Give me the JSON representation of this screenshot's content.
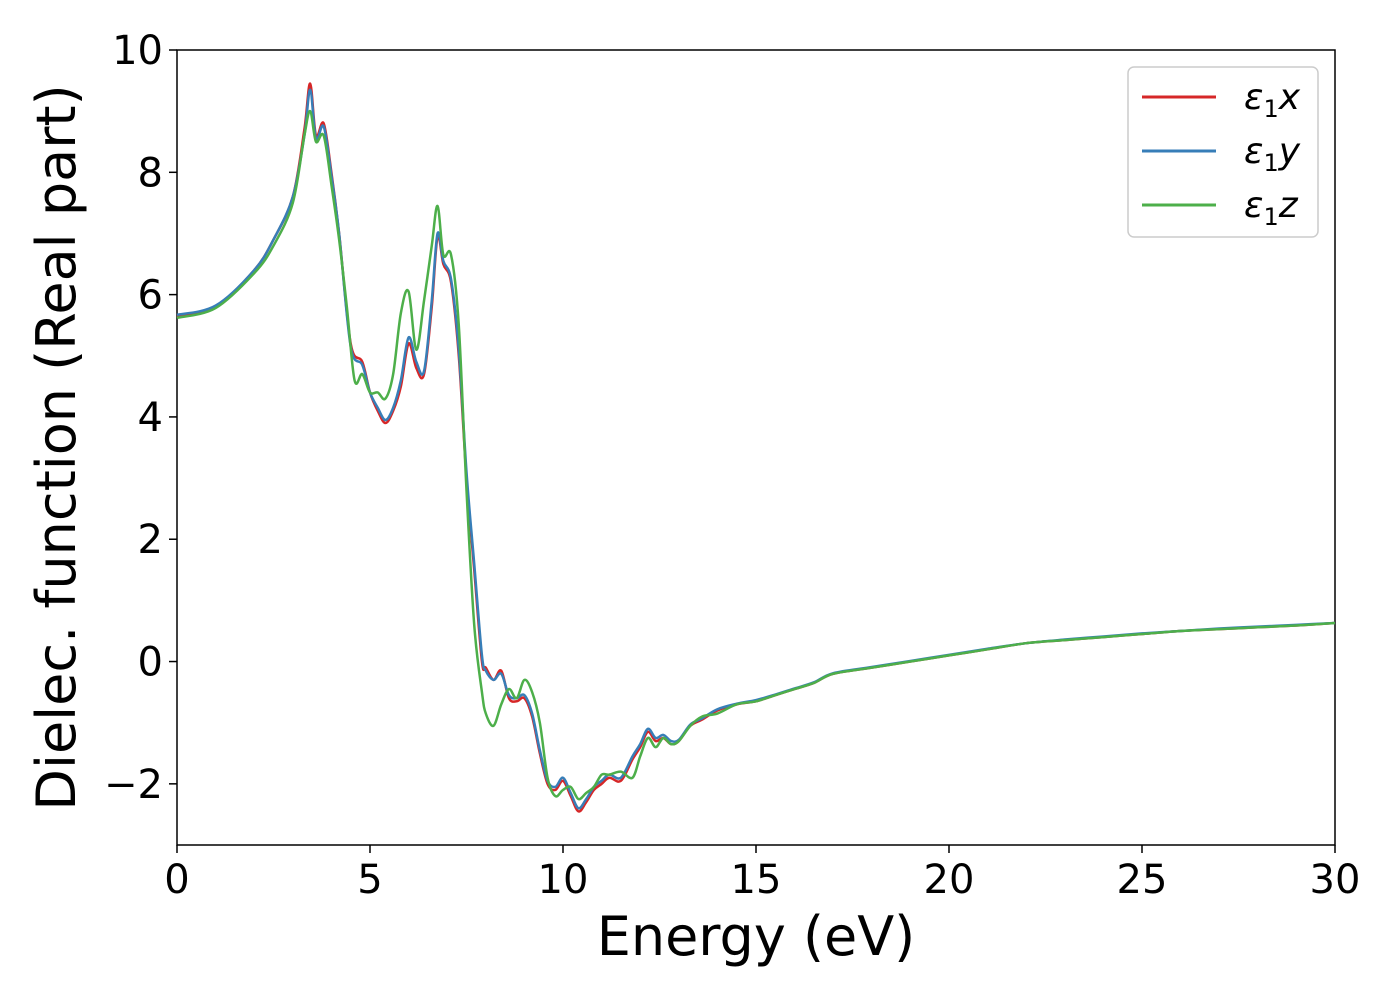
{
  "chart_data": {
    "type": "line",
    "title": "",
    "xlabel": "Energy (eV)",
    "ylabel": "Dielec. function (Real part)",
    "xlim": [
      0,
      30
    ],
    "ylim": [
      -3,
      10
    ],
    "xticks": [
      0,
      5,
      10,
      15,
      20,
      25,
      30
    ],
    "xtick_labels": [
      "0",
      "5",
      "10",
      "15",
      "20",
      "25",
      "30"
    ],
    "yticks": [
      -2,
      0,
      2,
      4,
      6,
      8,
      10
    ],
    "ytick_labels": [
      "−2",
      "0",
      "2",
      "4",
      "6",
      "8",
      "10"
    ],
    "grid": false,
    "legend_position": "top-right",
    "series": [
      {
        "name": "ε₁x",
        "legend": {
          "base": "ε",
          "sub": "1",
          "suffix": "x"
        },
        "color": "#d62728",
        "x": [
          0,
          1,
          2,
          2.5,
          3,
          3.3,
          3.45,
          3.6,
          3.8,
          4.0,
          4.2,
          4.5,
          4.8,
          5.0,
          5.2,
          5.4,
          5.6,
          5.8,
          6.0,
          6.2,
          6.4,
          6.6,
          6.75,
          6.9,
          7.1,
          7.3,
          7.5,
          7.7,
          7.9,
          8.0,
          8.2,
          8.4,
          8.6,
          8.8,
          9.0,
          9.2,
          9.4,
          9.6,
          9.8,
          10.0,
          10.2,
          10.4,
          10.6,
          10.8,
          11.0,
          11.2,
          11.5,
          11.8,
          12.0,
          12.2,
          12.4,
          12.6,
          12.8,
          13.0,
          13.3,
          13.6,
          14.0,
          14.5,
          15.0,
          15.5,
          16.0,
          16.5,
          17.0,
          18.0,
          19.0,
          20.0,
          21.0,
          22.0,
          23.0,
          24.0,
          25.0,
          26.0,
          27.0,
          28.0,
          29.0,
          30.0
        ],
        "y": [
          5.65,
          5.8,
          6.4,
          6.9,
          7.6,
          8.7,
          9.45,
          8.6,
          8.8,
          8.0,
          7.0,
          5.2,
          4.9,
          4.4,
          4.1,
          3.9,
          4.1,
          4.5,
          5.2,
          4.8,
          4.7,
          5.8,
          6.95,
          6.5,
          6.2,
          5.0,
          3.0,
          1.5,
          0.0,
          -0.1,
          -0.3,
          -0.15,
          -0.6,
          -0.65,
          -0.6,
          -0.9,
          -1.5,
          -2.0,
          -2.1,
          -1.95,
          -2.2,
          -2.45,
          -2.3,
          -2.1,
          -2.0,
          -1.9,
          -1.95,
          -1.6,
          -1.4,
          -1.15,
          -1.3,
          -1.25,
          -1.35,
          -1.3,
          -1.05,
          -0.95,
          -0.8,
          -0.7,
          -0.65,
          -0.55,
          -0.45,
          -0.35,
          -0.2,
          -0.1,
          0.0,
          0.1,
          0.2,
          0.3,
          0.35,
          0.4,
          0.45,
          0.5,
          0.53,
          0.56,
          0.59,
          0.63
        ]
      },
      {
        "name": "ε₁y",
        "legend": {
          "base": "ε",
          "sub": "1",
          "suffix": "y"
        },
        "color": "#377eb8",
        "x": [
          0,
          1,
          2,
          2.5,
          3,
          3.3,
          3.45,
          3.6,
          3.8,
          4.0,
          4.2,
          4.5,
          4.8,
          5.0,
          5.2,
          5.4,
          5.6,
          5.8,
          6.0,
          6.2,
          6.4,
          6.6,
          6.75,
          6.9,
          7.1,
          7.3,
          7.5,
          7.7,
          7.9,
          8.0,
          8.2,
          8.4,
          8.6,
          8.8,
          9.0,
          9.2,
          9.4,
          9.6,
          9.8,
          10.0,
          10.2,
          10.4,
          10.6,
          10.8,
          11.0,
          11.2,
          11.5,
          11.8,
          12.0,
          12.2,
          12.4,
          12.6,
          12.8,
          13.0,
          13.3,
          13.6,
          14.0,
          14.5,
          15.0,
          15.5,
          16.0,
          16.5,
          17.0,
          18.0,
          19.0,
          20.0,
          21.0,
          22.0,
          23.0,
          24.0,
          25.0,
          26.0,
          27.0,
          28.0,
          29.0,
          30.0
        ],
        "y": [
          5.67,
          5.82,
          6.4,
          6.9,
          7.6,
          8.6,
          9.35,
          8.55,
          8.75,
          7.95,
          7.0,
          5.15,
          4.85,
          4.4,
          4.15,
          3.95,
          4.15,
          4.6,
          5.3,
          4.9,
          4.75,
          5.9,
          7.0,
          6.55,
          6.25,
          5.1,
          3.1,
          1.6,
          0.1,
          -0.15,
          -0.3,
          -0.2,
          -0.55,
          -0.6,
          -0.55,
          -0.85,
          -1.45,
          -1.95,
          -2.05,
          -1.9,
          -2.15,
          -2.4,
          -2.25,
          -2.05,
          -1.95,
          -1.85,
          -1.9,
          -1.55,
          -1.35,
          -1.1,
          -1.25,
          -1.2,
          -1.3,
          -1.28,
          -1.03,
          -0.93,
          -0.78,
          -0.69,
          -0.63,
          -0.54,
          -0.44,
          -0.34,
          -0.19,
          -0.09,
          0.01,
          0.11,
          0.21,
          0.3,
          0.36,
          0.41,
          0.46,
          0.5,
          0.54,
          0.57,
          0.6,
          0.63
        ]
      },
      {
        "name": "ε₁z",
        "legend": {
          "base": "ε",
          "sub": "1",
          "suffix": "z"
        },
        "color": "#4daf4a",
        "x": [
          0,
          1,
          2,
          2.5,
          3,
          3.3,
          3.45,
          3.6,
          3.8,
          4.0,
          4.2,
          4.4,
          4.6,
          4.8,
          5.0,
          5.2,
          5.4,
          5.6,
          5.8,
          6.0,
          6.2,
          6.4,
          6.6,
          6.75,
          6.9,
          7.1,
          7.3,
          7.5,
          7.7,
          7.9,
          8.0,
          8.2,
          8.4,
          8.6,
          8.8,
          9.0,
          9.2,
          9.4,
          9.6,
          9.8,
          10.0,
          10.2,
          10.4,
          10.6,
          10.8,
          11.0,
          11.2,
          11.5,
          11.8,
          12.0,
          12.2,
          12.4,
          12.6,
          12.8,
          13.0,
          13.3,
          13.6,
          14.0,
          14.5,
          15.0,
          15.5,
          16.0,
          16.5,
          17.0,
          18.0,
          19.0,
          20.0,
          21.0,
          22.0,
          23.0,
          24.0,
          25.0,
          26.0,
          27.0,
          28.0,
          29.0,
          30.0
        ],
        "y": [
          5.62,
          5.78,
          6.35,
          6.8,
          7.5,
          8.6,
          9.0,
          8.5,
          8.6,
          7.8,
          6.9,
          5.8,
          4.6,
          4.7,
          4.4,
          4.4,
          4.3,
          4.7,
          5.7,
          6.05,
          5.1,
          5.9,
          6.8,
          7.45,
          6.65,
          6.65,
          5.5,
          2.8,
          0.6,
          -0.5,
          -0.85,
          -1.05,
          -0.7,
          -0.45,
          -0.6,
          -0.3,
          -0.5,
          -1.0,
          -1.9,
          -2.2,
          -2.1,
          -2.05,
          -2.25,
          -2.15,
          -2.05,
          -1.85,
          -1.85,
          -1.8,
          -1.9,
          -1.55,
          -1.25,
          -1.4,
          -1.25,
          -1.35,
          -1.3,
          -1.05,
          -0.9,
          -0.85,
          -0.7,
          -0.65,
          -0.55,
          -0.45,
          -0.35,
          -0.2,
          -0.1,
          0.0,
          0.1,
          0.2,
          0.3,
          0.35,
          0.4,
          0.45,
          0.5,
          0.53,
          0.56,
          0.59,
          0.63
        ]
      }
    ]
  }
}
